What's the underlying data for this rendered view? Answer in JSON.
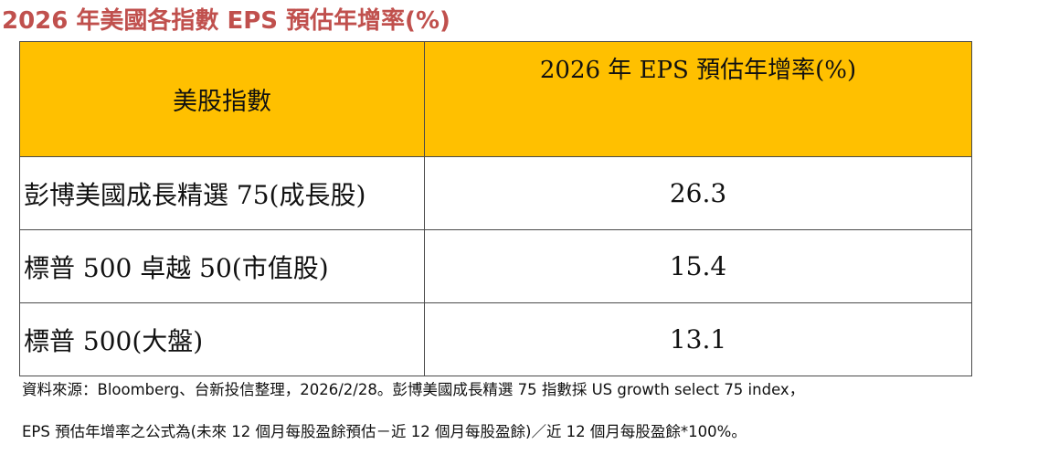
{
  "title": "2026 年美國各指數 EPS 預估年增率(%)",
  "table": {
    "headers": {
      "index": "美股指數",
      "rate": "2026 年 EPS 預估年增率(%)"
    },
    "rows": [
      {
        "name": "彭博美國成長精選 75(成長股)",
        "value": "26.3"
      },
      {
        "name": "標普 500 卓越 50(市值股)",
        "value": "15.4"
      },
      {
        "name": "標普 500(大盤)",
        "value": "13.1"
      }
    ]
  },
  "notes": {
    "line1": "資料來源：Bloomberg、台新投信整理，2026/2/28。彭博美國成長精選 75 指數採 US growth select 75 index，",
    "line2": "EPS 預估年增率之公式為(未來 12 個月每股盈餘預估－近 12 個月每股盈餘)／近 12 個月每股盈餘*100%。"
  },
  "colors": {
    "title": "#c0504d",
    "header_bg": "#ffc000"
  }
}
